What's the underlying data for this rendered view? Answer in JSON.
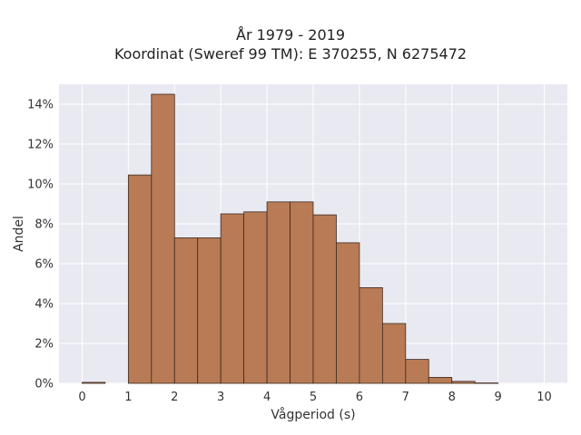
{
  "chart_data": {
    "type": "bar",
    "title_lines": [
      "År 1979 - 2019",
      "Koordinat (Sweref 99 TM): E 370255, N 6275472"
    ],
    "xlabel": "Vågperiod (s)",
    "ylabel": "Andel",
    "bin_width": 0.5,
    "bins": [
      {
        "start": 0.0,
        "value": 0.05
      },
      {
        "start": 1.0,
        "value": 10.45
      },
      {
        "start": 1.5,
        "value": 14.5
      },
      {
        "start": 2.0,
        "value": 7.3
      },
      {
        "start": 2.5,
        "value": 7.3
      },
      {
        "start": 3.0,
        "value": 8.5
      },
      {
        "start": 3.5,
        "value": 8.6
      },
      {
        "start": 4.0,
        "value": 9.1
      },
      {
        "start": 4.5,
        "value": 9.1
      },
      {
        "start": 5.0,
        "value": 8.45
      },
      {
        "start": 5.5,
        "value": 7.05
      },
      {
        "start": 6.0,
        "value": 4.8
      },
      {
        "start": 6.5,
        "value": 3.0
      },
      {
        "start": 7.0,
        "value": 1.2
      },
      {
        "start": 7.5,
        "value": 0.3
      },
      {
        "start": 8.0,
        "value": 0.1
      },
      {
        "start": 8.5,
        "value": 0.02
      }
    ],
    "xlim": [
      -0.5,
      10.5
    ],
    "ylim": [
      0,
      15
    ],
    "x_ticks": [
      0,
      1,
      2,
      3,
      4,
      5,
      6,
      7,
      8,
      9,
      10
    ],
    "x_tick_labels": [
      "0",
      "1",
      "2",
      "3",
      "4",
      "5",
      "6",
      "7",
      "8",
      "9",
      "10"
    ],
    "y_ticks": [
      0,
      2,
      4,
      6,
      8,
      10,
      12,
      14
    ],
    "y_tick_labels": [
      "0%",
      "2%",
      "4%",
      "6%",
      "8%",
      "10%",
      "12%",
      "14%"
    ],
    "grid": true,
    "bar_color": "#b87b55",
    "bar_edge_color": "#3d2a1f",
    "plot_background": "#e9e9f2",
    "grid_color": "#ffffff"
  }
}
